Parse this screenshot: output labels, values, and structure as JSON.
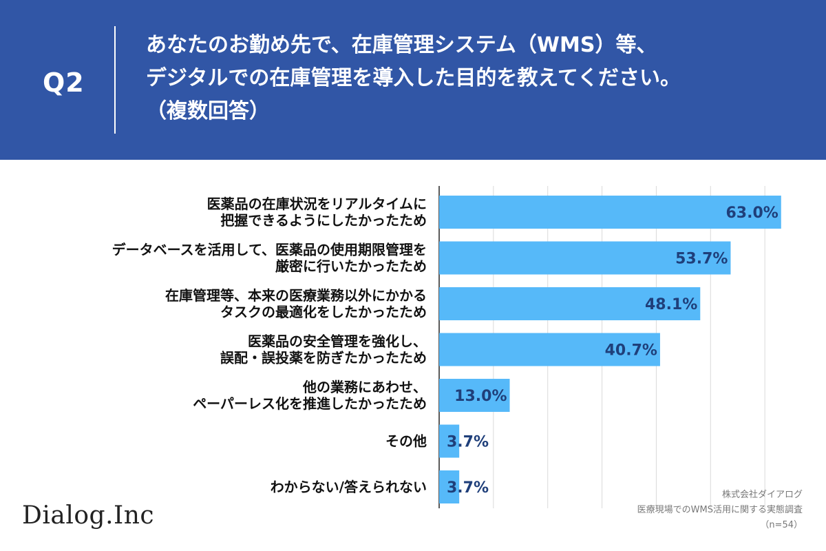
{
  "header": {
    "q_label": "Q2",
    "question_lines": [
      "あなたのお勤め先で、在庫管理システム（WMS）等、",
      "デジタルでの在庫管理を導入した目的を教えてください。",
      "（複数回答）"
    ]
  },
  "colors": {
    "header_bg": "#3156a6",
    "bar": "#56b9f9",
    "value_text": "#1f3f7a",
    "grid": "#d9d9d9"
  },
  "footer": {
    "logo": "Dialog.Inc",
    "source_lines": [
      "株式会社ダイアログ",
      "医療現場でのWMS活用に関する実態調査",
      "（n=54）"
    ]
  },
  "chart_data": {
    "type": "bar",
    "orientation": "horizontal",
    "unit": "%",
    "xlim": [
      0,
      70
    ],
    "grid": true,
    "categories": [
      [
        "医薬品の在庫状況をリアルタイムに",
        "把握できるようにしたかったため"
      ],
      [
        "データベースを活用して、医薬品の使用期限管理を",
        "厳密に行いたかったため"
      ],
      [
        "在庫管理等、本来の医療業務以外にかかる",
        "タスクの最適化をしたかったため"
      ],
      [
        "医薬品の安全管理を強化し、",
        "誤配・誤投薬を防ぎたかったため"
      ],
      [
        "他の業務にあわせ、",
        "ペーパーレス化を推進したかったため"
      ],
      [
        "その他"
      ],
      [
        "わからない/答えられない"
      ]
    ],
    "values": [
      63.0,
      53.7,
      48.1,
      40.7,
      13.0,
      3.7,
      3.7
    ],
    "value_labels": [
      "63.0%",
      "53.7%",
      "48.1%",
      "40.7%",
      "13.0%",
      "3.7%",
      "3.7%"
    ]
  }
}
